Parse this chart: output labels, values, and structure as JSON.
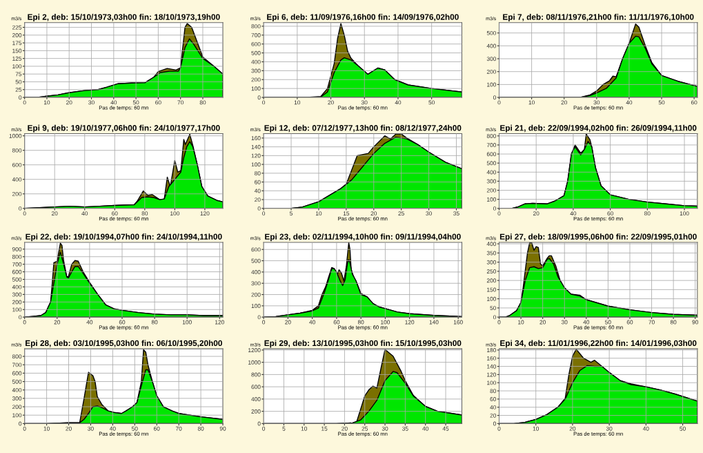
{
  "chart_data": [
    {
      "type": "area",
      "title": "Epi 2, deb: 15/10/1973,03h00 fin: 18/10/1973,19h00",
      "ylabel": "m3/s",
      "xlabel": "Pas de temps: 60 mn",
      "xlim": [
        0,
        89
      ],
      "ylim": [
        0,
        240
      ],
      "xticks": [
        0,
        10,
        20,
        30,
        40,
        50,
        60,
        70,
        80
      ],
      "yticks": [
        0,
        25,
        50,
        75,
        100,
        125,
        150,
        175,
        200,
        225
      ],
      "grid": true,
      "series": [
        {
          "color": "#7a7000",
          "x": [
            0,
            6,
            10,
            15,
            20,
            27,
            33,
            37,
            42,
            48,
            54,
            58,
            60,
            64,
            68,
            70,
            72,
            73,
            75,
            80,
            85,
            89
          ],
          "values": [
            0,
            0,
            4,
            8,
            15,
            22,
            25,
            33,
            44,
            46,
            47,
            65,
            83,
            93,
            88,
            95,
            225,
            237,
            225,
            130,
            100,
            75
          ]
        },
        {
          "color": "#00e600",
          "x": [
            0,
            6,
            10,
            15,
            20,
            27,
            33,
            37,
            42,
            48,
            54,
            58,
            61,
            65,
            69,
            70,
            72,
            74,
            76,
            80,
            85,
            89
          ],
          "values": [
            0,
            0,
            4,
            8,
            15,
            22,
            25,
            33,
            44,
            46,
            47,
            65,
            80,
            84,
            84,
            95,
            160,
            188,
            170,
            125,
            100,
            75
          ]
        }
      ]
    },
    {
      "type": "area",
      "title": "Epi 6, deb: 11/09/1976,16h00 fin: 14/09/1976,02h00",
      "ylabel": "m3/s",
      "xlabel": "Pas de temps: 60 mn",
      "xlim": [
        0,
        59
      ],
      "ylim": [
        0,
        840
      ],
      "xticks": [
        0,
        10,
        20,
        30,
        40,
        50
      ],
      "yticks": [
        0,
        100,
        200,
        300,
        400,
        500,
        600,
        700,
        800
      ],
      "grid": true,
      "series": [
        {
          "color": "#7a7000",
          "x": [
            0,
            13,
            17,
            19,
            21,
            22,
            23,
            24,
            25,
            26,
            28,
            31,
            34,
            36,
            39,
            43,
            50,
            59
          ],
          "values": [
            0,
            0,
            10,
            100,
            380,
            660,
            830,
            700,
            520,
            440,
            360,
            260,
            330,
            310,
            200,
            140,
            100,
            60
          ]
        },
        {
          "color": "#00e600",
          "x": [
            0,
            13,
            17,
            19,
            21,
            23,
            24,
            26,
            28,
            31,
            34,
            36,
            39,
            43,
            50,
            59
          ],
          "values": [
            0,
            0,
            5,
            60,
            280,
            420,
            445,
            420,
            360,
            260,
            330,
            310,
            200,
            140,
            100,
            60
          ]
        }
      ]
    },
    {
      "type": "area",
      "title": "Epi 7, deb: 08/11/1976,21h00 fin: 11/11/1976,10h00",
      "ylabel": "m3/s",
      "xlabel": "Pas de temps: 60 mn",
      "xlim": [
        0,
        61
      ],
      "ylim": [
        0,
        580
      ],
      "xticks": [
        0,
        10,
        20,
        30,
        40,
        50,
        60
      ],
      "yticks": [
        0,
        100,
        200,
        300,
        400,
        500
      ],
      "grid": true,
      "series": [
        {
          "color": "#7a7000",
          "x": [
            0,
            25,
            28,
            30,
            32,
            34,
            35,
            36,
            38,
            40,
            42,
            43,
            45,
            47,
            50,
            55,
            61
          ],
          "values": [
            0,
            0,
            20,
            50,
            100,
            130,
            165,
            160,
            300,
            420,
            570,
            545,
            400,
            270,
            170,
            125,
            85
          ]
        },
        {
          "color": "#00e600",
          "x": [
            0,
            25,
            28,
            30,
            33,
            36,
            38,
            40,
            42,
            43,
            45,
            47,
            50,
            55,
            61
          ],
          "values": [
            0,
            0,
            15,
            35,
            70,
            150,
            300,
            420,
            475,
            470,
            380,
            260,
            170,
            125,
            85
          ]
        }
      ]
    },
    {
      "type": "area",
      "title": "Epi 9, deb: 19/10/1977,06h00 fin: 24/10/1977,17h00",
      "ylabel": "m3/s",
      "xlabel": "Pas de temps: 60 mn",
      "xlim": [
        0,
        132
      ],
      "ylim": [
        0,
        1030
      ],
      "xticks": [
        0,
        20,
        40,
        60,
        80,
        100,
        120
      ],
      "yticks": [
        0,
        200,
        400,
        600,
        800,
        1000
      ],
      "grid": true,
      "series": [
        {
          "color": "#7a7000",
          "x": [
            0,
            10,
            20,
            30,
            40,
            50,
            60,
            73,
            75,
            79,
            82,
            85,
            90,
            93,
            95,
            97,
            100,
            102,
            104,
            106,
            107,
            110,
            112,
            115,
            118,
            122,
            128,
            132
          ],
          "values": [
            0,
            10,
            20,
            30,
            20,
            30,
            40,
            50,
            100,
            240,
            180,
            190,
            120,
            130,
            430,
            300,
            660,
            500,
            520,
            950,
            880,
            1020,
            870,
            600,
            300,
            170,
            110,
            90
          ]
        },
        {
          "color": "#00e600",
          "x": [
            0,
            10,
            20,
            30,
            40,
            50,
            60,
            73,
            75,
            78,
            82,
            86,
            90,
            93,
            96,
            100,
            104,
            106,
            108,
            110,
            112,
            115,
            118,
            122,
            128,
            132
          ],
          "values": [
            0,
            10,
            20,
            30,
            20,
            30,
            40,
            50,
            90,
            150,
            160,
            150,
            120,
            130,
            300,
            400,
            500,
            700,
            850,
            920,
            850,
            600,
            300,
            170,
            110,
            90
          ]
        }
      ]
    },
    {
      "type": "area",
      "title": "Epi 12, deb: 07/12/1977,13h00 fin: 08/12/1977,24h00",
      "ylabel": "m3/s",
      "xlabel": "Pas de temps: 60 mn",
      "xlim": [
        0,
        36
      ],
      "ylim": [
        0,
        170
      ],
      "xticks": [
        0,
        5,
        10,
        15,
        20,
        25,
        30,
        35
      ],
      "yticks": [
        0,
        20,
        40,
        60,
        80,
        100,
        120,
        140,
        160
      ],
      "grid": true,
      "series": [
        {
          "color": "#7a7000",
          "x": [
            0,
            5,
            7,
            10,
            12,
            14,
            15,
            17,
            19,
            20,
            22,
            23,
            24,
            25,
            26,
            28,
            30,
            33,
            36
          ],
          "values": [
            0,
            0,
            3,
            15,
            30,
            45,
            55,
            120,
            125,
            140,
            165,
            158,
            169,
            169,
            160,
            145,
            128,
            105,
            90
          ]
        },
        {
          "color": "#00e600",
          "x": [
            0,
            5,
            7,
            10,
            12,
            14,
            16,
            18,
            20,
            22,
            24,
            26,
            28,
            30,
            33,
            36
          ],
          "values": [
            0,
            0,
            3,
            15,
            30,
            45,
            65,
            95,
            125,
            148,
            162,
            158,
            145,
            128,
            105,
            90
          ]
        }
      ]
    },
    {
      "type": "area",
      "title": "Epi 21, deb: 22/09/1994,02h00 fin: 26/09/1994,11h00",
      "ylabel": "m3/s",
      "xlabel": "Pas de temps: 60 mn",
      "xlim": [
        0,
        107
      ],
      "ylim": [
        0,
        825
      ],
      "xticks": [
        0,
        20,
        40,
        60,
        80,
        100
      ],
      "yticks": [
        0,
        100,
        200,
        300,
        400,
        500,
        600,
        700,
        800
      ],
      "grid": true,
      "series": [
        {
          "color": "#7a7000",
          "x": [
            0,
            7,
            10,
            14,
            18,
            26,
            30,
            35,
            37,
            39,
            41,
            44,
            46,
            47,
            49,
            50,
            52,
            55,
            60,
            70,
            80,
            90,
            100,
            107
          ],
          "values": [
            0,
            0,
            15,
            50,
            55,
            50,
            80,
            140,
            300,
            600,
            700,
            610,
            650,
            820,
            760,
            680,
            450,
            250,
            150,
            100,
            70,
            50,
            30,
            25
          ]
        },
        {
          "color": "#00e600",
          "x": [
            0,
            7,
            10,
            14,
            18,
            26,
            30,
            35,
            37,
            39,
            41,
            44,
            46,
            48,
            50,
            52,
            55,
            60,
            70,
            80,
            90,
            100,
            107
          ],
          "values": [
            0,
            0,
            15,
            50,
            55,
            50,
            80,
            140,
            300,
            600,
            680,
            590,
            650,
            740,
            680,
            450,
            250,
            150,
            100,
            70,
            50,
            30,
            25
          ]
        }
      ]
    },
    {
      "type": "area",
      "title": "Epi 22, deb: 19/10/1994,07h00 fin: 24/10/1994,11h00",
      "ylabel": "m3/s",
      "xlabel": "Pas de temps: 60 mn",
      "xlim": [
        0,
        122
      ],
      "ylim": [
        0,
        990
      ],
      "xticks": [
        0,
        20,
        40,
        60,
        80,
        100,
        120
      ],
      "yticks": [
        0,
        100,
        200,
        300,
        400,
        500,
        600,
        700,
        800,
        900
      ],
      "grid": true,
      "series": [
        {
          "color": "#7a7000",
          "x": [
            0,
            5,
            10,
            13,
            16,
            17,
            18,
            20,
            22,
            23,
            24,
            26,
            27,
            29,
            31,
            33,
            36,
            40,
            45,
            50,
            55,
            60,
            70,
            80,
            90,
            100,
            110,
            122
          ],
          "values": [
            0,
            10,
            20,
            60,
            200,
            450,
            720,
            740,
            980,
            950,
            750,
            530,
            540,
            700,
            750,
            740,
            600,
            460,
            300,
            160,
            110,
            90,
            60,
            40,
            30,
            30,
            20,
            20
          ]
        },
        {
          "color": "#00e600",
          "x": [
            0,
            5,
            10,
            13,
            16,
            18,
            20,
            22,
            24,
            26,
            27,
            29,
            31,
            33,
            36,
            40,
            45,
            50,
            55,
            60,
            70,
            80,
            90,
            100,
            110,
            122
          ],
          "values": [
            0,
            10,
            20,
            60,
            200,
            450,
            700,
            860,
            700,
            530,
            520,
            600,
            670,
            670,
            580,
            450,
            300,
            160,
            110,
            90,
            60,
            40,
            30,
            30,
            20,
            20
          ]
        }
      ]
    },
    {
      "type": "area",
      "title": "Epi 23, deb: 02/11/1994,10h00 fin: 09/11/1994,04h00",
      "ylabel": "m3/s",
      "xlabel": "Pas de temps: 60 mn",
      "xlim": [
        0,
        163
      ],
      "ylim": [
        0,
        663
      ],
      "xticks": [
        0,
        20,
        40,
        60,
        80,
        100,
        120,
        140,
        160
      ],
      "yticks": [
        0,
        100,
        200,
        300,
        400,
        500,
        600
      ],
      "grid": true,
      "series": [
        {
          "color": "#7a7000",
          "x": [
            0,
            10,
            20,
            30,
            40,
            45,
            48,
            51,
            53,
            56,
            58,
            60,
            62,
            64,
            66,
            68,
            70,
            71,
            72,
            74,
            76,
            80,
            85,
            90,
            95,
            100,
            110,
            120,
            140,
            163
          ],
          "values": [
            0,
            5,
            20,
            35,
            60,
            100,
            200,
            270,
            340,
            440,
            430,
            360,
            420,
            390,
            320,
            450,
            660,
            600,
            420,
            360,
            320,
            210,
            180,
            120,
            90,
            75,
            45,
            30,
            15,
            5
          ]
        },
        {
          "color": "#00e600",
          "x": [
            0,
            10,
            20,
            30,
            40,
            45,
            50,
            53,
            56,
            58,
            60,
            63,
            65,
            67,
            69,
            70,
            71,
            73,
            76,
            80,
            85,
            90,
            95,
            100,
            110,
            120,
            140,
            163
          ],
          "values": [
            0,
            5,
            20,
            35,
            55,
            80,
            220,
            320,
            430,
            430,
            400,
            320,
            280,
            330,
            480,
            510,
            480,
            380,
            320,
            200,
            180,
            120,
            90,
            75,
            45,
            30,
            15,
            5
          ]
        }
      ]
    },
    {
      "type": "area",
      "title": "Epi 27, deb: 18/09/1995,06h00 fin: 22/09/1995,01h00",
      "ylabel": "m3/s",
      "xlabel": "Pas de temps: 60 mn",
      "xlim": [
        0,
        91
      ],
      "ylim": [
        0,
        408
      ],
      "xticks": [
        0,
        10,
        20,
        30,
        40,
        50,
        60,
        70,
        80,
        90
      ],
      "yticks": [
        0,
        50,
        100,
        150,
        200,
        250,
        300,
        350,
        400
      ],
      "grid": true,
      "series": [
        {
          "color": "#7a7000",
          "x": [
            0,
            3,
            5,
            8,
            10,
            11,
            13,
            14,
            15,
            16,
            17,
            18,
            19,
            20,
            22,
            23,
            24,
            26,
            28,
            30,
            33,
            37,
            40,
            50,
            60,
            70,
            80,
            91
          ],
          "values": [
            0,
            0,
            10,
            35,
            80,
            160,
            350,
            405,
            405,
            365,
            385,
            380,
            290,
            280,
            320,
            335,
            335,
            280,
            200,
            160,
            125,
            120,
            95,
            60,
            40,
            25,
            15,
            10
          ]
        },
        {
          "color": "#00e600",
          "x": [
            0,
            3,
            5,
            8,
            10,
            12,
            14,
            16,
            18,
            20,
            22,
            23,
            25,
            27,
            30,
            33,
            37,
            40,
            50,
            60,
            70,
            80,
            91
          ],
          "values": [
            0,
            0,
            10,
            35,
            80,
            200,
            270,
            275,
            265,
            270,
            315,
            320,
            290,
            220,
            160,
            125,
            115,
            95,
            60,
            40,
            25,
            15,
            10
          ]
        }
      ]
    },
    {
      "type": "area",
      "title": "Epi 28, deb: 03/10/1995,03h00 fin: 06/10/1995,20h00",
      "ylabel": "m3/s",
      "xlabel": "Pas de temps: 60 mn",
      "xlim": [
        0,
        90
      ],
      "ylim": [
        0,
        890
      ],
      "xticks": [
        0,
        10,
        20,
        30,
        40,
        50,
        60,
        70,
        80,
        90
      ],
      "yticks": [
        0,
        100,
        200,
        300,
        400,
        500,
        600,
        700,
        800
      ],
      "grid": true,
      "series": [
        {
          "color": "#7a7000",
          "x": [
            0,
            10,
            20,
            25,
            27,
            29,
            31,
            32,
            33,
            35,
            38,
            41,
            44,
            46,
            49,
            51,
            53,
            54,
            55,
            56,
            58,
            60,
            63,
            67,
            70,
            80,
            90
          ],
          "values": [
            0,
            0,
            10,
            10,
            300,
            610,
            570,
            500,
            320,
            230,
            150,
            130,
            120,
            150,
            200,
            250,
            500,
            880,
            850,
            700,
            500,
            330,
            200,
            150,
            120,
            80,
            50
          ]
        },
        {
          "color": "#00e600",
          "x": [
            0,
            10,
            20,
            25,
            27,
            29,
            31,
            33,
            35,
            38,
            41,
            44,
            46,
            49,
            51,
            53,
            55,
            56,
            58,
            60,
            63,
            67,
            70,
            80,
            90
          ],
          "values": [
            0,
            0,
            10,
            10,
            50,
            120,
            200,
            210,
            190,
            150,
            130,
            120,
            150,
            200,
            250,
            450,
            640,
            640,
            500,
            330,
            200,
            150,
            120,
            80,
            50
          ]
        }
      ]
    },
    {
      "type": "area",
      "title": "Epi 29, deb: 13/10/1995,03h00 fin: 15/10/1995,03h00",
      "ylabel": "m3/s",
      "xlabel": "Pas de temps: 60 mn",
      "xlim": [
        0,
        49
      ],
      "ylim": [
        0,
        1220
      ],
      "xticks": [
        0,
        5,
        10,
        15,
        20,
        25,
        30,
        35,
        40,
        45
      ],
      "yticks": [
        0,
        200,
        400,
        600,
        800,
        1000,
        1200
      ],
      "grid": true,
      "series": [
        {
          "color": "#7a7000",
          "x": [
            0,
            18,
            22,
            23,
            25,
            26,
            27,
            28,
            29,
            30,
            32,
            34,
            35,
            37,
            40,
            43,
            46,
            49
          ],
          "values": [
            0,
            0,
            10,
            30,
            450,
            550,
            610,
            580,
            900,
            1210,
            1100,
            850,
            700,
            460,
            280,
            200,
            170,
            140
          ]
        },
        {
          "color": "#00e600",
          "x": [
            0,
            18,
            22,
            24,
            26,
            28,
            30,
            32,
            33,
            35,
            37,
            40,
            43,
            46,
            49
          ],
          "values": [
            0,
            0,
            10,
            60,
            200,
            380,
            700,
            850,
            830,
            660,
            450,
            280,
            200,
            170,
            140
          ]
        }
      ]
    },
    {
      "type": "area",
      "title": "Epi 34, deb: 11/01/1996,22h00 fin: 14/01/1996,03h00",
      "ylabel": "m3/s",
      "xlabel": "Pas de temps: 60 mn",
      "xlim": [
        0,
        54
      ],
      "ylim": [
        0,
        183
      ],
      "xticks": [
        0,
        10,
        20,
        30,
        40,
        50
      ],
      "yticks": [
        0,
        20,
        40,
        60,
        80,
        100,
        120,
        140,
        160,
        180
      ],
      "grid": true,
      "series": [
        {
          "color": "#7a7000",
          "x": [
            0,
            4,
            7,
            10,
            13,
            16,
            18,
            19,
            20,
            21,
            23,
            25,
            26,
            28,
            30,
            33,
            36,
            40,
            44,
            48,
            54
          ],
          "values": [
            0,
            0,
            3,
            10,
            22,
            40,
            62,
            120,
            165,
            182,
            160,
            150,
            155,
            140,
            125,
            105,
            97,
            90,
            82,
            72,
            55
          ]
        },
        {
          "color": "#00e600",
          "x": [
            0,
            4,
            7,
            10,
            13,
            16,
            18,
            20,
            22,
            24,
            26,
            28,
            30,
            33,
            36,
            40,
            44,
            48,
            54
          ],
          "values": [
            0,
            0,
            3,
            10,
            22,
            40,
            60,
            100,
            130,
            142,
            140,
            140,
            125,
            105,
            95,
            90,
            82,
            72,
            55
          ]
        }
      ]
    }
  ]
}
